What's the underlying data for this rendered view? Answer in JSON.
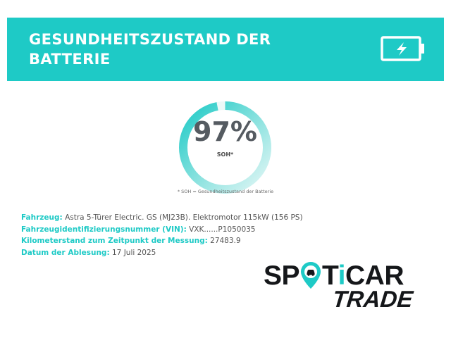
{
  "header": {
    "title": "GESUNDHEITSZUSTAND DER BATTERIE",
    "background_color": "#1ecac6",
    "icon": "battery-charging-icon"
  },
  "gauge": {
    "value": 97,
    "value_text": "97%",
    "label": "SOH*",
    "footnote": "* SOH = Gesundheitszustand der Batterie",
    "accent_color": "#1ecac6"
  },
  "details": [
    {
      "key": "Fahrzeug:",
      "value": "Astra 5-Türer Electric. GS (MJ23B). Elektromotor 115kW (156 PS)"
    },
    {
      "key": "Fahrzeugidentifizierungsnummer (VIN):",
      "value": "VXK......P1050035"
    },
    {
      "key": "Kilometerstand zum Zeitpunkt der Messung:",
      "value": "27483.9"
    },
    {
      "key": "Datum der Ablesung:",
      "value": "17 Juli 2025"
    }
  ],
  "logo": {
    "text_before_pin": "SP",
    "text_after_pin": "T",
    "accent_letter": "i",
    "text_end": "CAR",
    "subtitle": "TRADE"
  }
}
